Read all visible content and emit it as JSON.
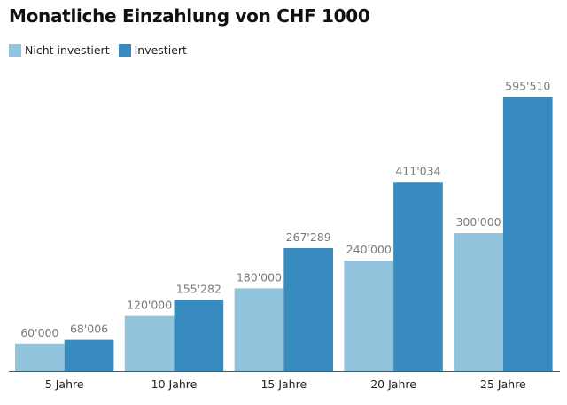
{
  "chart_data": {
    "type": "bar",
    "title": "Monatliche Einzahlung von CHF 1000",
    "categories": [
      "5 Jahre",
      "10 Jahre",
      "15 Jahre",
      "20 Jahre",
      "25 Jahre"
    ],
    "series": [
      {
        "name": "Nicht investiert",
        "values": [
          60000,
          120000,
          180000,
          240000,
          300000
        ],
        "labels": [
          "60'000",
          "120'000",
          "180'000",
          "240'000",
          "300'000"
        ],
        "color": "#93c4dd"
      },
      {
        "name": "Investiert",
        "values": [
          68006,
          155282,
          267289,
          411034,
          595510
        ],
        "labels": [
          "68'006",
          "155'282",
          "267'289",
          "411'034",
          "595'510"
        ],
        "color": "#378bbf"
      }
    ],
    "ylim": [
      0,
      600000
    ],
    "grid": false,
    "legend": "top-left"
  }
}
